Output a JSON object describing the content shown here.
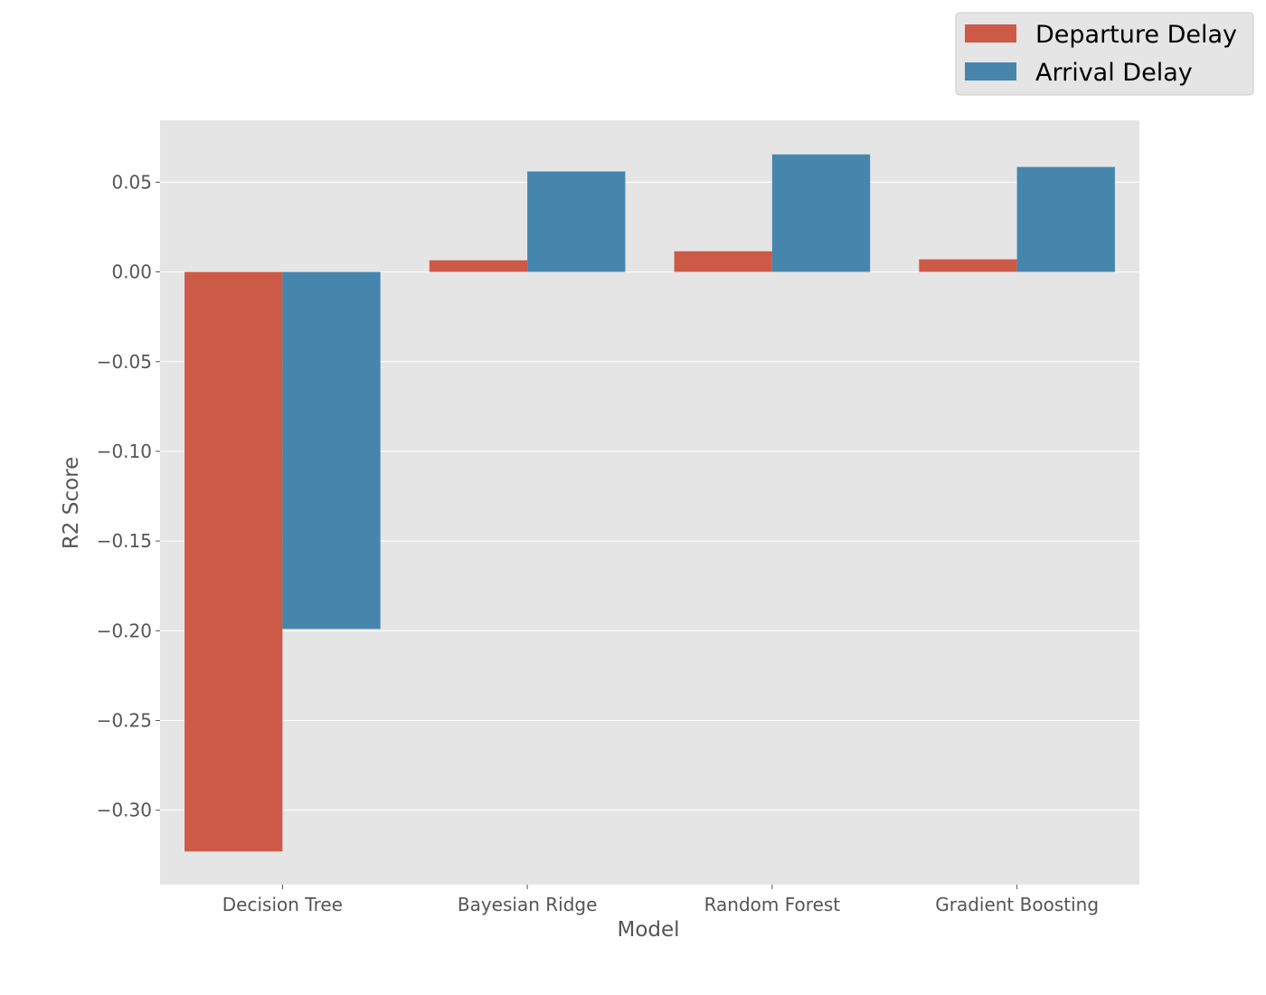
{
  "chart_data": {
    "type": "bar",
    "title": "",
    "xlabel": "Model",
    "ylabel": "R2 Score",
    "categories": [
      "Decision Tree",
      "Bayesian Ridge",
      "Random Forest",
      "Gradient Boosting"
    ],
    "series": [
      {
        "name": "Departure Delay",
        "values": [
          -0.323,
          0.0065,
          0.0115,
          0.007
        ]
      },
      {
        "name": "Arrival Delay",
        "values": [
          -0.199,
          0.056,
          0.0655,
          0.0585
        ]
      }
    ],
    "ylim": [
      -0.3415,
      0.0845
    ],
    "yticks": [
      0.05,
      0.0,
      -0.05,
      -0.1,
      -0.15,
      -0.2,
      -0.25,
      -0.3
    ],
    "ytick_labels": [
      "0.05",
      "0.00",
      "−0.05",
      "−0.10",
      "−0.15",
      "−0.20",
      "−0.25",
      "−0.30"
    ],
    "grid": true,
    "legend_position": "top-right, outside plot",
    "colors": {
      "series": [
        "#cc5a47",
        "#4686ad"
      ],
      "plot_background": "#e5e5e5",
      "grid": "#ffffff",
      "legend_background": "#e5e5e5",
      "tick_text": "#555555"
    }
  }
}
